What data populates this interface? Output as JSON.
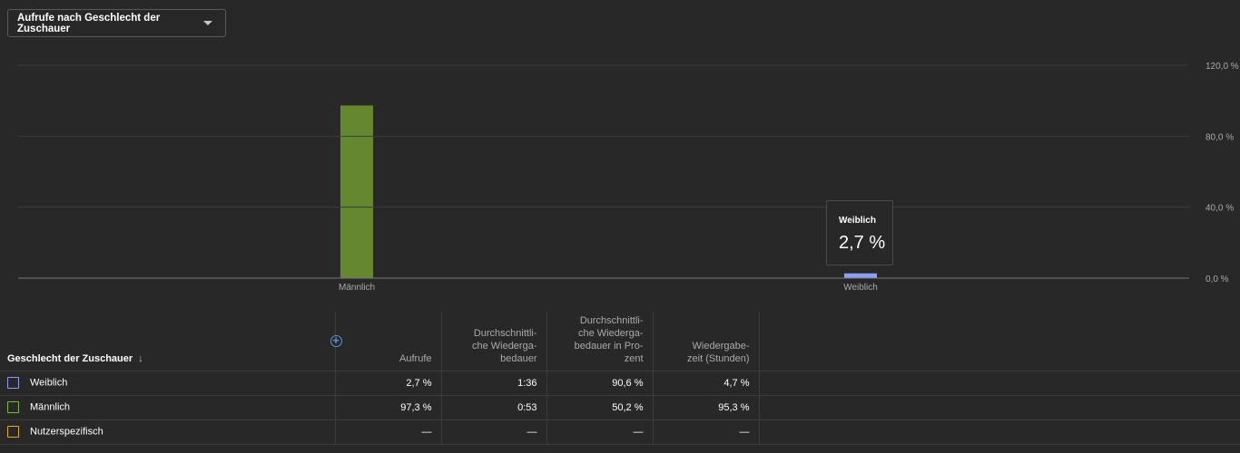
{
  "metric_dropdown": {
    "label": "Aufrufe nach Geschlecht der Zuschauer"
  },
  "chart_data": {
    "type": "bar",
    "categories": [
      "Männlich",
      "Weiblich"
    ],
    "values": [
      97.3,
      2.7
    ],
    "colors": [
      "#64882f",
      "#8c9ff5"
    ],
    "ylim": [
      0,
      120
    ],
    "yticks": [
      "0,0 %",
      "40,0 %",
      "80,0 %",
      "120,0 %"
    ],
    "ytick_values": [
      0,
      40,
      80,
      120
    ],
    "grid": true
  },
  "tooltip": {
    "name": "Weiblich",
    "value": "2,7 %"
  },
  "table": {
    "dimension_header": "Geschlecht der Zuschauer",
    "sort_icon": "arrow-down-icon",
    "add_icon": "add-column-icon",
    "columns": [
      [
        "Aufrufe"
      ],
      [
        "Durchschnittli-",
        "che Wiederga-",
        "bedauer"
      ],
      [
        "Durchschnittli-",
        "che Wiederga-",
        "bedauer in Pro-",
        "zent"
      ],
      [
        "Wiedergabe-",
        "zeit (Stunden)"
      ]
    ],
    "rows": [
      {
        "label": "Weiblich",
        "color": "#8c9ff5",
        "values": [
          "2,7 %",
          "1:36",
          "90,6 %",
          "4,7 %"
        ]
      },
      {
        "label": "Männlich",
        "color": "#7ab648",
        "values": [
          "97,3 %",
          "0:53",
          "50,2 %",
          "95,3 %"
        ]
      },
      {
        "label": "Nutzerspezifisch",
        "color": "#e6a23c",
        "values": [
          "—",
          "—",
          "—",
          "—"
        ]
      }
    ]
  }
}
